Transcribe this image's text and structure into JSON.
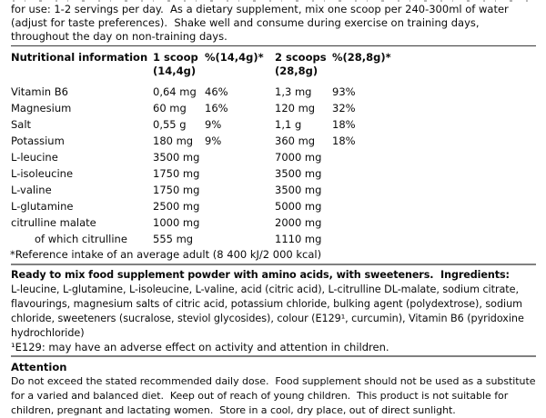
{
  "usage_text": "for use: 1-2 servings per day.  As a dietary supplement, mix one scoop per 240-300ml of water (adjust for taste preferences).  Shake well and consume during exercise on training days, throughout the day on non-training days.",
  "nutrition_table": {
    "header": {
      "title": "Nutritional information",
      "scoop1_line1": "1 scoop",
      "scoop1_line2": "(14,4g)",
      "pct1": "%(14,4g)*",
      "scoop2_line1": "2 scoops",
      "scoop2_line2": "(28,8g)",
      "pct2": "%(28,8g)*"
    },
    "rows": [
      {
        "name": "Vitamin B6",
        "amount1": "0,64 mg",
        "pct1": "46%",
        "amount2": "1,3 mg",
        "pct2": "93%"
      },
      {
        "name": "Magnesium",
        "amount1": "60 mg",
        "pct1": "16%",
        "amount2": "120 mg",
        "pct2": "32%"
      },
      {
        "name": "Salt",
        "amount1": "0,55 g",
        "pct1": "9%",
        "amount2": "1,1 g",
        "pct2": "18%"
      },
      {
        "name": "Potassium",
        "amount1": "180 mg",
        "pct1": "9%",
        "amount2": "360 mg",
        "pct2": "18%"
      },
      {
        "name": "L-leucine",
        "amount1": "3500 mg",
        "pct1": "",
        "amount2": "7000 mg",
        "pct2": ""
      },
      {
        "name": "L-isoleucine",
        "amount1": "1750 mg",
        "pct1": "",
        "amount2": "3500 mg",
        "pct2": ""
      },
      {
        "name": "L-valine",
        "amount1": "1750 mg",
        "pct1": "",
        "amount2": "3500 mg",
        "pct2": ""
      },
      {
        "name": "L-glutamine",
        "amount1": "2500 mg",
        "pct1": "",
        "amount2": "5000 mg",
        "pct2": ""
      },
      {
        "name": "citrulline malate",
        "amount1": "1000 mg",
        "pct1": "",
        "amount2": "2000 mg",
        "pct2": ""
      },
      {
        "name": "of which citrulline",
        "amount1": "555 mg",
        "pct1": "",
        "amount2": "1110 mg",
        "pct2": ""
      }
    ],
    "footnote": "*Reference intake of an average adult (8 400 kJ/2 000 kcal)"
  },
  "ingredients": {
    "heading": "Ready to mix food supplement powder with amino acids, with sweeteners.  Ingredients:",
    "list": "L-leucine, L-glutamine, L-isoleucine, L-valine, acid (citric acid), L-citrulline DL-malate, sodium citrate, flavourings, magnesium salts of citric acid, potassium chloride, bulking agent (polydextrose), sodium chloride, sweeteners (sucralose, steviol glycosides), colour (E129¹, curcumin), Vitamin B6 (pyridoxine hydrochloride)",
    "footnote": "¹E129: may have an adverse effect on activity and attention in children."
  },
  "attention": {
    "heading": "Attention",
    "text": "Do not exceed the stated recommended daily dose.  Food supplement should not be used as a substitute for a varied and balanced diet.  Keep out of reach of young children.  This product is not suitable for children, pregnant and lactating women.  Store in a cool, dry place, out of direct sunlight."
  },
  "colors": {
    "background": "#ffffff",
    "text": "#0b0b0b",
    "rule_thin": "#3a3a3a",
    "rule_thick": "#808080"
  }
}
